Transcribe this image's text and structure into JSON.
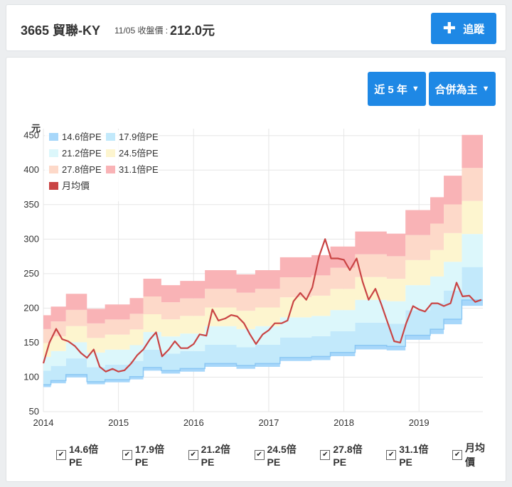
{
  "header": {
    "title": "3665 貿聯-KY",
    "date_label": "11/05 收盤價 :",
    "price": "212.0元",
    "track_label": "追蹤"
  },
  "controls": {
    "range_label": "近 5 年",
    "basis_label": "合併為主"
  },
  "colors": {
    "accent": "#1e88e5",
    "band_14_6": "#a7d7fa",
    "band_17_9": "#c2e9fb",
    "band_21_2": "#dcf7fb",
    "band_24_5": "#fdf5cf",
    "band_27_8": "#fdd9c9",
    "band_31_1": "#f9b3b6",
    "price_line": "#c94444"
  },
  "chart_data": {
    "type": "area",
    "title": "",
    "y_unit_label": "元",
    "ylim": [
      50,
      460
    ],
    "yticks": [
      50,
      100,
      150,
      200,
      250,
      300,
      350,
      400,
      450
    ],
    "xlim": [
      2014.0,
      2019.85
    ],
    "xticks": [
      "2014",
      "2015",
      "2016",
      "2017",
      "2018",
      "2019"
    ],
    "grid": true,
    "legend_placement": "top-left",
    "legend": [
      "14.6倍PE",
      "17.9倍PE",
      "21.2倍PE",
      "24.5倍PE",
      "27.8倍PE",
      "31.1倍PE",
      "月均價"
    ],
    "pe_multiples": [
      14.6,
      17.9,
      21.2,
      24.5,
      27.8,
      31.1
    ],
    "eps_steps": [
      {
        "x": 2014.0,
        "eps": 6.1
      },
      {
        "x": 2014.1,
        "eps": 6.5
      },
      {
        "x": 2014.3,
        "eps": 7.1
      },
      {
        "x": 2014.58,
        "eps": 6.4
      },
      {
        "x": 2014.82,
        "eps": 6.6
      },
      {
        "x": 2015.15,
        "eps": 6.9
      },
      {
        "x": 2015.33,
        "eps": 7.8
      },
      {
        "x": 2015.57,
        "eps": 7.5
      },
      {
        "x": 2015.82,
        "eps": 7.7
      },
      {
        "x": 2016.15,
        "eps": 8.2
      },
      {
        "x": 2016.57,
        "eps": 8.0
      },
      {
        "x": 2016.82,
        "eps": 8.2
      },
      {
        "x": 2017.15,
        "eps": 8.8
      },
      {
        "x": 2017.57,
        "eps": 8.9
      },
      {
        "x": 2017.82,
        "eps": 9.3
      },
      {
        "x": 2018.15,
        "eps": 10.0
      },
      {
        "x": 2018.57,
        "eps": 9.9
      },
      {
        "x": 2018.82,
        "eps": 11.0
      },
      {
        "x": 2019.15,
        "eps": 11.6
      },
      {
        "x": 2019.33,
        "eps": 12.6
      },
      {
        "x": 2019.57,
        "eps": 14.5
      }
    ],
    "series": [
      {
        "name": "月均價",
        "x": [
          2014.0,
          2014.08,
          2014.17,
          2014.25,
          2014.33,
          2014.42,
          2014.5,
          2014.58,
          2014.67,
          2014.75,
          2014.83,
          2014.92,
          2015.0,
          2015.08,
          2015.17,
          2015.25,
          2015.33,
          2015.42,
          2015.5,
          2015.58,
          2015.67,
          2015.75,
          2015.83,
          2015.92,
          2016.0,
          2016.08,
          2016.17,
          2016.25,
          2016.33,
          2016.42,
          2016.5,
          2016.58,
          2016.67,
          2016.75,
          2016.83,
          2016.92,
          2017.0,
          2017.08,
          2017.17,
          2017.25,
          2017.33,
          2017.42,
          2017.5,
          2017.58,
          2017.67,
          2017.75,
          2017.83,
          2017.92,
          2018.0,
          2018.08,
          2018.17,
          2018.25,
          2018.33,
          2018.42,
          2018.5,
          2018.58,
          2018.67,
          2018.75,
          2018.83,
          2018.92,
          2019.0,
          2019.08,
          2019.17,
          2019.25,
          2019.33,
          2019.42,
          2019.5,
          2019.58,
          2019.67,
          2019.75,
          2019.83
        ],
        "values": [
          120,
          150,
          170,
          155,
          152,
          145,
          135,
          128,
          140,
          115,
          108,
          112,
          108,
          110,
          120,
          132,
          140,
          155,
          165,
          130,
          140,
          152,
          142,
          142,
          148,
          162,
          160,
          198,
          182,
          185,
          190,
          188,
          178,
          162,
          148,
          162,
          168,
          178,
          178,
          182,
          210,
          222,
          212,
          230,
          275,
          300,
          272,
          272,
          270,
          255,
          272,
          238,
          212,
          228,
          205,
          180,
          152,
          150,
          178,
          203,
          198,
          195,
          207,
          207,
          203,
          207,
          237,
          217,
          218,
          209,
          212
        ]
      }
    ]
  }
}
